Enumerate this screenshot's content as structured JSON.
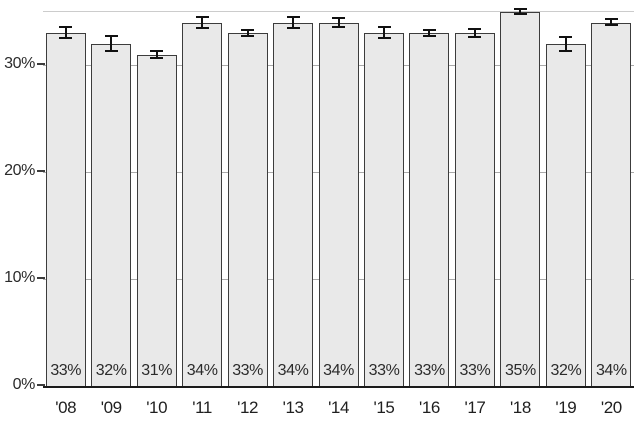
{
  "chart_data": {
    "type": "bar",
    "title": "",
    "xlabel": "",
    "ylabel": "",
    "categories": [
      "'08",
      "'09",
      "'10",
      "'11",
      "'12",
      "'13",
      "'14",
      "'15",
      "'16",
      "'17",
      "'18",
      "'19",
      "'20"
    ],
    "values": [
      33,
      32,
      31,
      34,
      33,
      34,
      34,
      33,
      33,
      33,
      35,
      32,
      34
    ],
    "bar_labels": [
      "33%",
      "32%",
      "31%",
      "34%",
      "33%",
      "34%",
      "34%",
      "33%",
      "33%",
      "33%",
      "35%",
      "32%",
      "34%"
    ],
    "error_bars": {
      "shown": true,
      "plus_minus": [
        0.6,
        0.8,
        0.4,
        0.6,
        0.4,
        0.6,
        0.5,
        0.6,
        0.4,
        0.5,
        0.35,
        0.75,
        0.35
      ]
    },
    "ylim": [
      0,
      35
    ],
    "yticks": [
      {
        "value": 0,
        "label": "0%"
      },
      {
        "value": 10,
        "label": "10%"
      },
      {
        "value": 20,
        "label": "20%"
      },
      {
        "value": 30,
        "label": "30%"
      }
    ],
    "gridlines_at": [
      10,
      20,
      30
    ],
    "grid": "horizontal, behind bars (visible in gaps between bars)",
    "legend_position": "none"
  },
  "colors": {
    "background": "#ffffff",
    "bar_fill": "#e9e9e9",
    "bar_border": "#3c3c3c",
    "error_bar": "#111111",
    "gridline": "#a9a9a9",
    "axis_line": "#1a1a1a",
    "top_border": "#cccccc",
    "text": "#2b2b2b"
  }
}
